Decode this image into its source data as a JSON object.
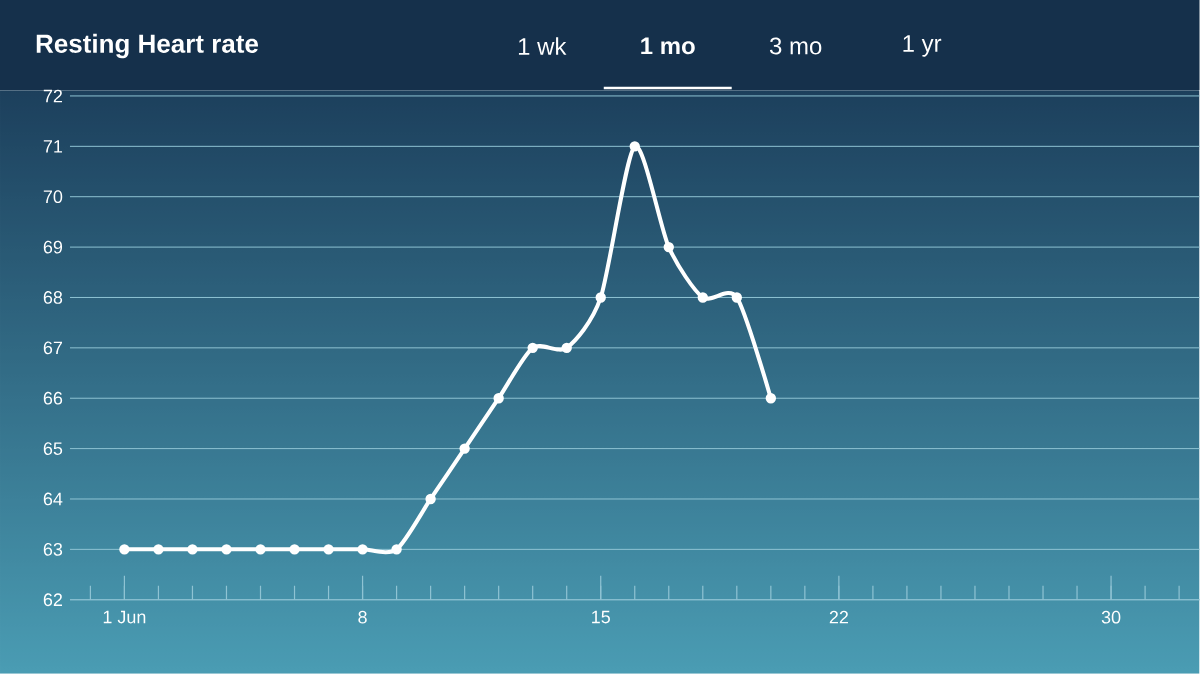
{
  "chart_data": {
    "type": "line",
    "title": "Resting Heart rate",
    "annotations": [
      "1 wk",
      "1 mo",
      "3 mo",
      "1 yr"
    ],
    "x": [
      1,
      2,
      3,
      4,
      5,
      6,
      7,
      8,
      9,
      10,
      11,
      12,
      13,
      14,
      15,
      16,
      17,
      18,
      19,
      20
    ],
    "series": [
      {
        "color": "#ffffff",
        "values": [
          63,
          63,
          63,
          63,
          63,
          63,
          63,
          63,
          63,
          64,
          65,
          66,
          67,
          67,
          68,
          71,
          69,
          68,
          68,
          66
        ]
      }
    ],
    "xlim": [
      -0.6,
      32.6
    ],
    "xticks": [
      {
        "value": 1,
        "label": "1 Jun"
      },
      8,
      15,
      22,
      30
    ],
    "ylim": [
      62,
      72
    ],
    "yticks": [
      62,
      63,
      64,
      65,
      66,
      67,
      68,
      69,
      70,
      71,
      72
    ],
    "grid": "y",
    "marker": "circle",
    "line_style": "solid"
  }
}
